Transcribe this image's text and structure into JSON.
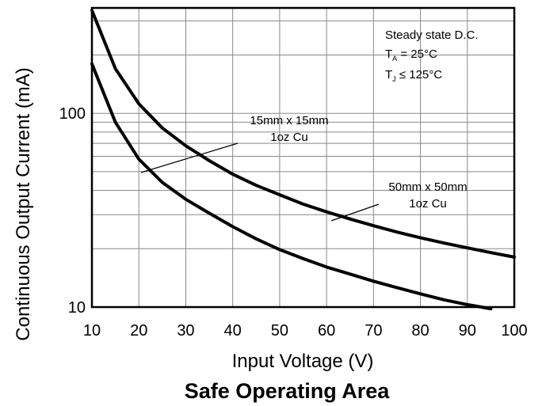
{
  "chart_data": {
    "type": "line",
    "title": "Safe Operating Area",
    "xlabel": "Input Voltage (V)",
    "ylabel": "Continuous Output Current (mA)",
    "xlim": [
      10,
      100
    ],
    "ylim": [
      10,
      350
    ],
    "y_scale": "log",
    "grid": true,
    "x_ticks": [
      "10",
      "20",
      "30",
      "40",
      "50",
      "60",
      "70",
      "80",
      "90",
      "100"
    ],
    "y_ticks": [
      "10",
      "100"
    ],
    "conditions": {
      "line1": "Steady state D.C.",
      "ta_main": "T",
      "ta_sub": "A",
      "ta_value": " = 25°C",
      "tj_main": "T",
      "tj_sub": "J",
      "tj_value": " ≤ 125°C"
    },
    "series": [
      {
        "name": "15mm x 15mm 1oz Cu",
        "label_line1": "15mm x 15mm",
        "label_line2": "1oz Cu",
        "x": [
          10,
          15,
          20,
          25,
          30,
          35,
          40,
          45,
          50,
          55,
          60,
          65,
          70,
          75,
          80,
          85,
          90,
          95
        ],
        "y": [
          180,
          90,
          58,
          44,
          36,
          30.5,
          26,
          22.5,
          19.8,
          17.8,
          16.1,
          14.8,
          13.6,
          12.6,
          11.7,
          10.9,
          10.3,
          9.8
        ]
      },
      {
        "name": "50mm x 50mm 1oz Cu",
        "label_line1": "50mm x 50mm",
        "label_line2": "1oz Cu",
        "x": [
          10,
          15,
          20,
          25,
          30,
          35,
          40,
          45,
          50,
          55,
          60,
          65,
          70,
          75,
          80,
          85,
          90,
          95,
          100
        ],
        "y": [
          340,
          170,
          112,
          84,
          68,
          57,
          48.5,
          42.5,
          38,
          34,
          31,
          28.5,
          26.3,
          24.4,
          22.8,
          21.4,
          20.2,
          19.1,
          18.1
        ]
      }
    ]
  }
}
